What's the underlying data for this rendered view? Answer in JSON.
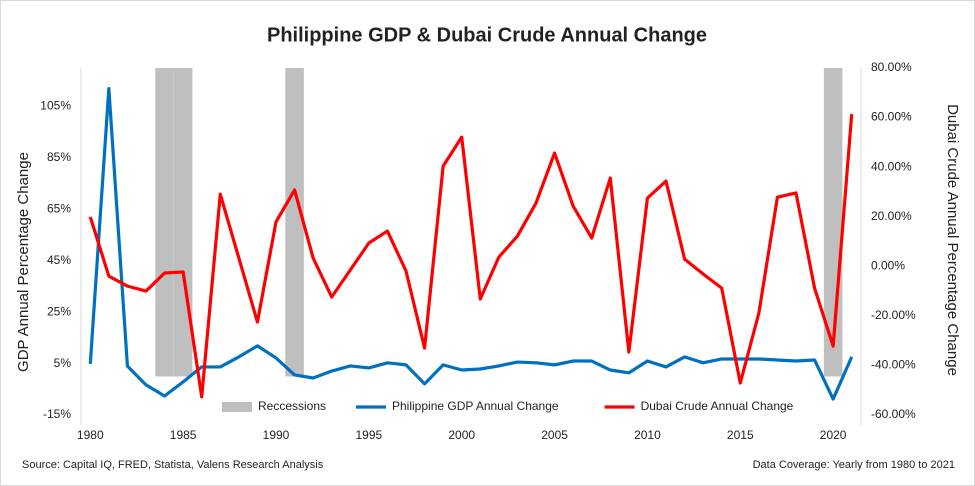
{
  "chart_data": {
    "type": "line",
    "title": "Philippine GDP & Dubai Crude Annual Change",
    "y_label": "GDP Annual Percentage Change",
    "y2_label": "Dubai Crude Annual Percentage Change",
    "source": "Source: Capital IQ, FRED, Statista, Valens Research Analysis",
    "coverage": "Data Coverage: Yearly from 1980 to 2021",
    "xlim": [
      1979.5,
      2021.5
    ],
    "xticks": [
      1980,
      1985,
      1990,
      1995,
      2000,
      2005,
      2010,
      2015,
      2020
    ],
    "ylim": [
      -15,
      120
    ],
    "yticks": [
      {
        "value": -15,
        "label": "-15%"
      },
      {
        "value": 5,
        "label": "5%"
      },
      {
        "value": 25,
        "label": "25%"
      },
      {
        "value": 45,
        "label": "45%"
      },
      {
        "value": 65,
        "label": "65%"
      },
      {
        "value": 85,
        "label": "85%"
      },
      {
        "value": 105,
        "label": "105%"
      }
    ],
    "y2lim": [
      -60,
      80
    ],
    "y2ticks": [
      {
        "value": -60,
        "label": "-60.00%"
      },
      {
        "value": -40,
        "label": "-40.00%"
      },
      {
        "value": -20,
        "label": "-20.00%"
      },
      {
        "value": 0,
        "label": "0.00%"
      },
      {
        "value": 20,
        "label": "20.00%"
      },
      {
        "value": 40,
        "label": "40.00%"
      },
      {
        "value": 60,
        "label": "60.00%"
      },
      {
        "value": 80,
        "label": "80.00%"
      }
    ],
    "legend": "bottom",
    "recessions": {
      "type": "bar",
      "name": "Reccessions",
      "color": "#bfbfbf",
      "x": [
        1984,
        1985,
        1991,
        2020
      ],
      "values": [
        120,
        120,
        120,
        120
      ]
    },
    "x": [
      1980,
      1981,
      1982,
      1983,
      1984,
      1985,
      1986,
      1987,
      1988,
      1989,
      1990,
      1991,
      1992,
      1993,
      1994,
      1995,
      1996,
      1997,
      1998,
      1999,
      2000,
      2001,
      2002,
      2003,
      2004,
      2005,
      2006,
      2007,
      2008,
      2009,
      2010,
      2011,
      2012,
      2013,
      2014,
      2015,
      2016,
      2017,
      2018,
      2019,
      2020,
      2021
    ],
    "series": [
      {
        "name": "Philippine GDP Annual Change",
        "color": "#0070c0",
        "axis": "y",
        "values": [
          4.9,
          112,
          4,
          -3.3,
          -7.6,
          -2.1,
          3.7,
          3.7,
          7.6,
          11.9,
          7.2,
          0.6,
          -0.6,
          2.1,
          4.1,
          3.3,
          5.3,
          4.5,
          -2.9,
          4.5,
          2.5,
          2.9,
          4.1,
          5.6,
          5.3,
          4.5,
          6,
          6,
          2.5,
          1.4,
          6,
          3.7,
          7.6,
          5.3,
          6.8,
          6.8,
          6.8,
          6.4,
          6,
          6.4,
          -8.8,
          7.6
        ]
      },
      {
        "name": "Dubai Crude Annual Change",
        "color": "#ff0000",
        "axis": "y2",
        "values": [
          19.9,
          -4,
          -8,
          -10,
          -2.7,
          -2.3,
          -52.7,
          29.1,
          3.3,
          -22.5,
          17.9,
          30.8,
          3.3,
          -12.4,
          -1.5,
          9.4,
          14.2,
          -1.9,
          -33,
          40.4,
          52.1,
          -13.2,
          3.7,
          12.2,
          25.5,
          45.7,
          24.3,
          11.4,
          35.6,
          -34.6,
          27.5,
          34.4,
          2.9,
          -3.1,
          -8.8,
          -47.1,
          -18.9,
          27.9,
          29.6,
          -8.8,
          -32.2,
          61.4
        ]
      }
    ]
  }
}
